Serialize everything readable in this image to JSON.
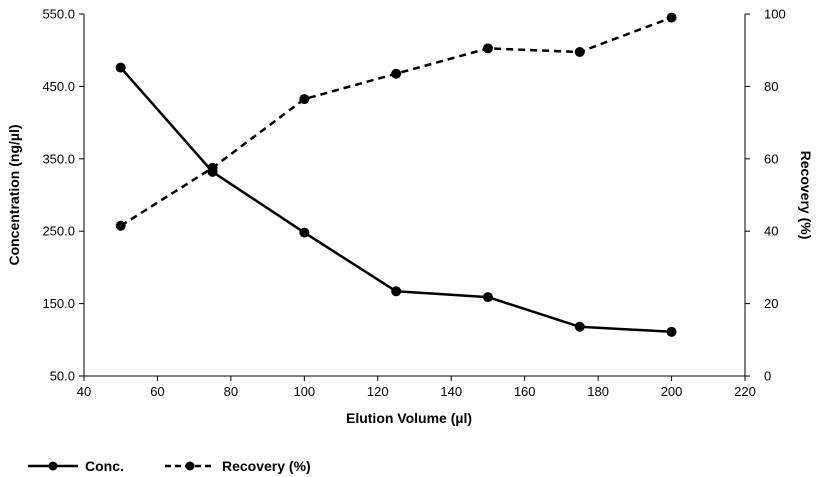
{
  "chart_data": {
    "type": "line",
    "title": "",
    "xlabel": "Elution Volume (µl)",
    "ylabel_left": "Concentration (ng/µl)",
    "ylabel_right": "Recovery (%)",
    "xlim": [
      40,
      220
    ],
    "xticks": [
      40,
      60,
      80,
      100,
      120,
      140,
      160,
      180,
      200,
      220
    ],
    "ylim_left": [
      50,
      550
    ],
    "yticks_left": [
      "50.0",
      "150.0",
      "250.0",
      "350.0",
      "450.0",
      "550.0"
    ],
    "ylim_right": [
      0,
      100
    ],
    "yticks_right": [
      0,
      20,
      40,
      60,
      80,
      100
    ],
    "grid": false,
    "legend_position": "bottom-left",
    "series": [
      {
        "name": "Conc.",
        "axis": "left",
        "style": "solid",
        "color": "#000000",
        "x": [
          50,
          75,
          100,
          125,
          150,
          175,
          200
        ],
        "y": [
          476,
          332,
          248,
          167,
          159,
          118,
          111
        ]
      },
      {
        "name": "Recovery (%)",
        "axis": "right",
        "style": "dashed",
        "color": "#000000",
        "x": [
          50,
          75,
          100,
          125,
          150,
          175,
          200
        ],
        "y": [
          41.5,
          57.5,
          76.5,
          83.5,
          90.5,
          89.5,
          99
        ]
      }
    ]
  }
}
